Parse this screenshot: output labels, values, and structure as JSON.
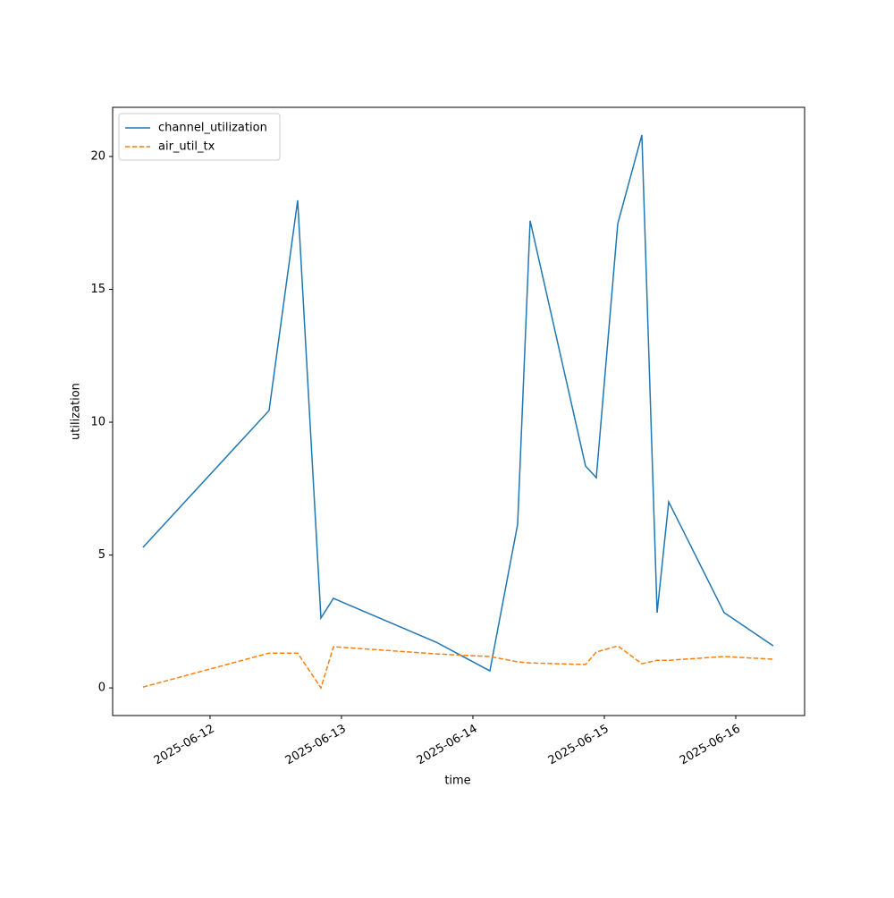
{
  "chart_data": {
    "type": "line",
    "xlabel": "time",
    "ylabel": "utilization",
    "x": [
      "2025-06-11T11:45",
      "2025-06-12T10:47",
      "2025-06-12T16:00",
      "2025-06-12T20:15",
      "2025-06-12T22:32",
      "2025-06-13T17:18",
      "2025-06-14T03:06",
      "2025-06-14T08:10",
      "2025-06-14T10:27",
      "2025-06-14T20:34",
      "2025-06-14T22:32",
      "2025-06-15T02:27",
      "2025-06-15T06:51",
      "2025-06-15T09:38",
      "2025-06-15T11:45",
      "2025-06-15T21:53",
      "2025-06-16T06:51"
    ],
    "series": [
      {
        "name": "channel_utilization",
        "color": "#1f77b4",
        "linestyle": "solid",
        "values": [
          5.29,
          10.44,
          18.35,
          2.63,
          3.37,
          1.72,
          0.64,
          6.16,
          17.58,
          8.35,
          7.91,
          17.47,
          20.81,
          2.83,
          7.0,
          2.83,
          1.58
        ]
      },
      {
        "name": "air_util_tx",
        "color": "#ff7f0e",
        "linestyle": "dashed",
        "values": [
          0.03,
          1.31,
          1.31,
          0.0,
          1.55,
          1.28,
          1.18,
          0.98,
          0.94,
          0.88,
          1.35,
          1.58,
          0.91,
          1.04,
          1.04,
          1.18,
          1.08
        ]
      }
    ],
    "xlim": [
      "2025-06-11T06:13",
      "2025-06-16T12:34"
    ],
    "xticks": [
      "2025-06-12",
      "2025-06-13",
      "2025-06-14",
      "2025-06-15",
      "2025-06-16"
    ],
    "ylim": [
      -1.04,
      21.85
    ],
    "yticks": [
      0,
      5,
      10,
      15,
      20
    ],
    "legend": "upper left"
  }
}
